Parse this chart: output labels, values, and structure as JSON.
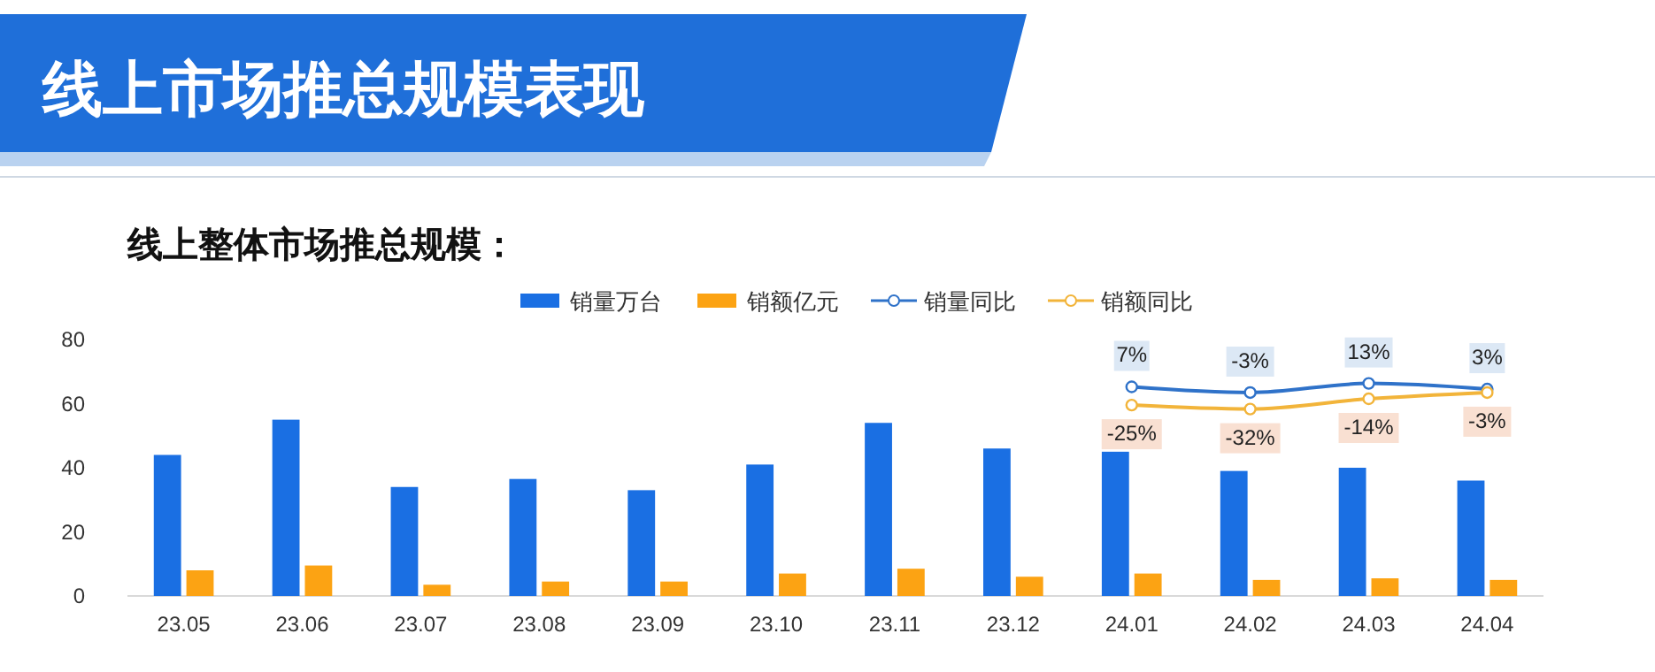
{
  "chart_data": {
    "type": "bar",
    "title": "线上市场推总规模表现",
    "subtitle": "线上整体市场推总规模：",
    "categories": [
      "23.05",
      "23.06",
      "23.07",
      "23.08",
      "23.09",
      "23.10",
      "23.11",
      "23.12",
      "24.01",
      "24.02",
      "24.03",
      "24.04"
    ],
    "series": [
      {
        "name": "销量万台",
        "color": "#1a6fe3",
        "values": [
          44,
          55,
          34,
          36.5,
          33,
          41,
          54,
          46,
          45,
          39,
          40,
          36
        ]
      },
      {
        "name": "销额亿元",
        "color": "#fca313",
        "values": [
          8,
          9.5,
          3.5,
          4.5,
          4.5,
          7,
          8.5,
          6,
          7,
          5,
          5.5,
          5
        ]
      },
      {
        "name": "销量同比",
        "type": "line",
        "axis": "y2",
        "color": "#2f72c9",
        "marker": "circle",
        "values": [
          null,
          null,
          null,
          null,
          null,
          null,
          null,
          null,
          7,
          -3,
          13,
          3
        ],
        "value_labels": [
          null,
          null,
          null,
          null,
          null,
          null,
          null,
          null,
          "7%",
          "-3%",
          "13%",
          "3%"
        ]
      },
      {
        "name": "销额同比",
        "type": "line",
        "axis": "y2",
        "color": "#f2b43a",
        "marker": "circle",
        "values": [
          null,
          null,
          null,
          null,
          null,
          null,
          null,
          null,
          -25,
          -32,
          -14,
          -3
        ],
        "value_labels": [
          null,
          null,
          null,
          null,
          null,
          null,
          null,
          null,
          "-25%",
          "-32%",
          "-14%",
          "-3%"
        ]
      }
    ],
    "ylim": [
      0,
      80
    ],
    "yticks": [
      0,
      20,
      40,
      60,
      80
    ],
    "y2lim": [
      -360,
      90
    ],
    "grid": false,
    "legend": "top",
    "tick_labels": "xy"
  }
}
